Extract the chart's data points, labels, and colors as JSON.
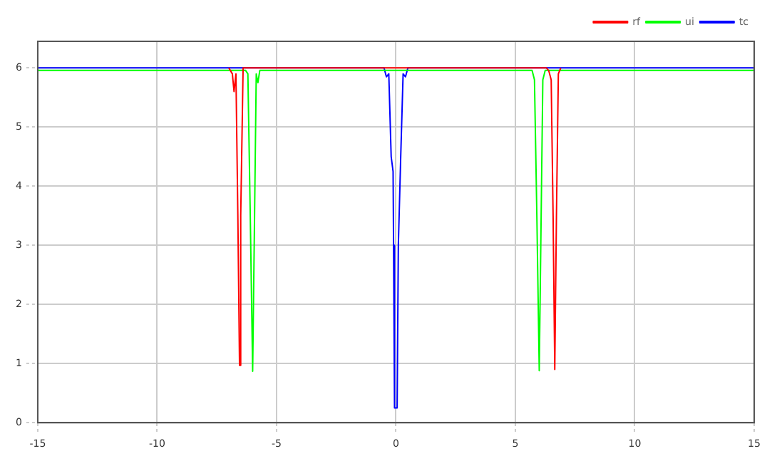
{
  "chart_data": {
    "type": "line",
    "xlim": [
      -15,
      15
    ],
    "ylim": [
      0,
      6.45
    ],
    "xticks": [
      -15,
      -10,
      -5,
      0,
      5,
      10,
      15
    ],
    "yticks": [
      0,
      1,
      2,
      3,
      4,
      5,
      6
    ],
    "grid": true,
    "legend": "top right",
    "marker": "none",
    "line_style": "solid",
    "series": [
      {
        "name": "rf",
        "color": "#ff0000",
        "x": [
          -7.0,
          -6.85,
          -6.78,
          -6.7,
          -6.62,
          -6.55,
          -6.5,
          -6.4,
          6.3,
          6.4,
          6.5,
          6.58,
          6.65,
          6.72,
          6.8,
          6.9
        ],
        "values": [
          6,
          5.9,
          5.6,
          5.9,
          3.5,
          0.97,
          3.5,
          6,
          6,
          5.95,
          5.8,
          3.5,
          0.9,
          3.5,
          5.9,
          6
        ]
      },
      {
        "name": "ui",
        "color": "#00ff00",
        "x": [
          -15,
          -6.3,
          -6.2,
          -6.1,
          -6.0,
          -5.92,
          -5.85,
          -5.78,
          -5.7,
          5.7,
          5.8,
          5.9,
          6.0,
          6.08,
          6.15,
          6.25,
          15
        ],
        "values": [
          5.96,
          5.96,
          5.9,
          3.5,
          0.87,
          3.5,
          5.9,
          5.75,
          5.96,
          5.96,
          5.8,
          3.5,
          0.88,
          3.5,
          5.8,
          5.96,
          5.96
        ]
      },
      {
        "name": "tc",
        "color": "#0000ff",
        "x": [
          -15,
          -0.5,
          -0.4,
          -0.3,
          -0.2,
          -0.12,
          -0.1,
          -0.07,
          -0.05,
          0.05,
          0.1,
          0.2,
          0.3,
          0.4,
          0.5,
          15
        ],
        "values": [
          6,
          6,
          5.85,
          5.9,
          4.5,
          4.25,
          3,
          0.25,
          0.25,
          0.25,
          3,
          4.5,
          5.9,
          5.85,
          6,
          6
        ]
      }
    ]
  }
}
